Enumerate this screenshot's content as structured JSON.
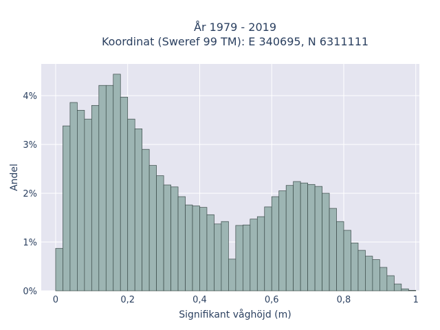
{
  "chart_data": {
    "type": "bar",
    "title_line1": "År 1979 - 2019",
    "title_line2": "Koordinat (Sweref 99 TM): E 340695, N 6311111",
    "xlabel": "Signifikant våghöjd (m)",
    "ylabel": "Andel",
    "xlim": [
      -0.04,
      1.01
    ],
    "ylim": [
      0,
      0.0465
    ],
    "x_ticks": [
      {
        "value": 0,
        "label": "0"
      },
      {
        "value": 0.2,
        "label": "0,2"
      },
      {
        "value": 0.4,
        "label": "0,4"
      },
      {
        "value": 0.6,
        "label": "0,6"
      },
      {
        "value": 0.8,
        "label": "0,8"
      },
      {
        "value": 1.0,
        "label": "1"
      }
    ],
    "y_ticks": [
      {
        "value": 0,
        "label": "0%"
      },
      {
        "value": 0.01,
        "label": "1%"
      },
      {
        "value": 0.02,
        "label": "2%"
      },
      {
        "value": 0.03,
        "label": "3%"
      },
      {
        "value": 0.04,
        "label": "4%"
      }
    ],
    "grid": true,
    "bin_start": 0.01,
    "bin_width": 0.02,
    "values": [
      0.0087,
      0.0338,
      0.0386,
      0.037,
      0.0352,
      0.038,
      0.0421,
      0.0421,
      0.0444,
      0.0397,
      0.0352,
      0.0332,
      0.029,
      0.0257,
      0.0236,
      0.0217,
      0.0213,
      0.0193,
      0.0176,
      0.0174,
      0.0171,
      0.0156,
      0.0137,
      0.0142,
      0.0065,
      0.0134,
      0.0135,
      0.0147,
      0.0152,
      0.0172,
      0.0193,
      0.0205,
      0.0216,
      0.0224,
      0.0221,
      0.0218,
      0.0214,
      0.02,
      0.0169,
      0.0142,
      0.0124,
      0.0098,
      0.0083,
      0.0071,
      0.0064,
      0.0048,
      0.0031,
      0.0014,
      0.0004,
      0.0001
    ],
    "colors": {
      "plot_bg": "#e5e5f0",
      "grid": "#ffffff",
      "bar_fill": "#9db5b3",
      "bar_stroke": "#3a4a48",
      "text": "#2a3f5f"
    }
  }
}
